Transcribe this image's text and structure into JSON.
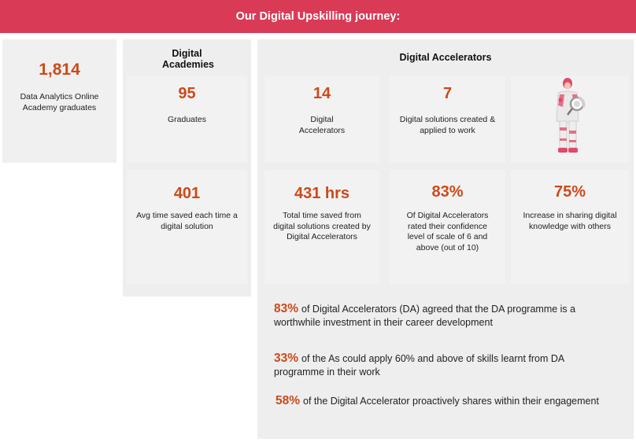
{
  "header": {
    "title": "Our Digital Upskilling journey:"
  },
  "left_card": {
    "value": "1,814",
    "label": "Data Analytics Online Academy graduates"
  },
  "academies": {
    "title": "Digital Academies",
    "cards": [
      {
        "value": "95",
        "label": "Graduates"
      },
      {
        "value": "401",
        "label": "Avg time saved each time a digital solution"
      }
    ]
  },
  "accelerators": {
    "title": "Digital Accelerators",
    "row1": [
      {
        "value": "14",
        "label": "Digital Accelerators"
      },
      {
        "value": "7",
        "label": "Digital solutions created & applied to work"
      }
    ],
    "row2": [
      {
        "value": "431 hrs",
        "label": "Total time saved from digital solutions created by Digital Accelerators"
      },
      {
        "value": "83%",
        "label": "Of Digital Accelerators rated their confidence level of scale of 6 and above (out of 10)"
      },
      {
        "value": "75%",
        "label": "Increase in sharing digital knowledge with others"
      }
    ],
    "statements": [
      {
        "pct": "83%",
        "text": "of Digital Accelerators (DA) agreed that the DA programme is a worthwhile investment in their career development"
      },
      {
        "pct": "33%",
        "text": "of the As could apply 60% and above of skills learnt from DA programme in their work"
      },
      {
        "pct": "58%",
        "text": "of the Digital Accelerator proactively shares within their engagement"
      }
    ]
  },
  "colors": {
    "header": "#d93a56",
    "accent": "#cc4a1a",
    "panel": "#eeeeee",
    "card": "#f2f2f2"
  },
  "illustration": {
    "icon": "person-with-magnifier-illustration"
  }
}
